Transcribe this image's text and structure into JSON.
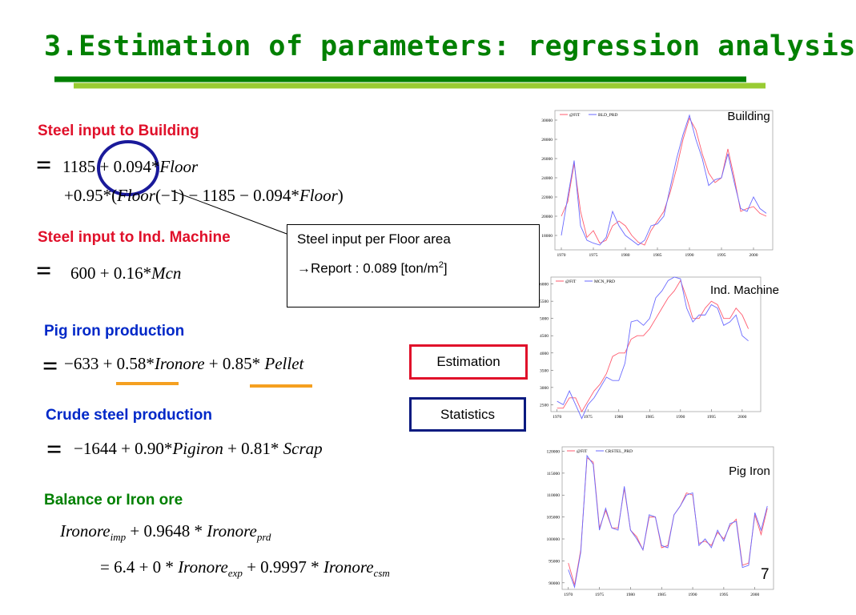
{
  "title": "3.Estimation of parameters: regression analysis",
  "sections": [
    {
      "label": "Steel input to Building",
      "color": "#e0102a",
      "equals": "=",
      "lines": [
        [
          "1185 + 0.094*",
          {
            "i": "Floor"
          }
        ],
        [
          "+0.95*(",
          {
            "i": "Floor"
          },
          "(−1) − 1185 − 0.094*",
          {
            "i": "Floor"
          },
          ")"
        ]
      ]
    },
    {
      "label": "Steel input to Ind. Machine",
      "color": "#e0102a",
      "equals": "=",
      "lines": [
        [
          "600 + 0.16*",
          {
            "i": "Mcn"
          }
        ]
      ]
    },
    {
      "label": "Pig iron production",
      "color": "#0028c8",
      "equals": "=",
      "lines": [
        [
          "−633 + 0.58*",
          {
            "i": "Ironore"
          },
          " + 0.85* ",
          {
            "i": "Pellet"
          }
        ]
      ]
    },
    {
      "label": "Crude steel production",
      "color": "#0028c8",
      "equals": "=",
      "lines": [
        [
          "−1644 + 0.90*",
          {
            "i": "Pigiron"
          },
          " + 0.81* ",
          {
            "i": "Scrap"
          }
        ]
      ]
    },
    {
      "label": "Balance or Iron ore",
      "color": "#008000",
      "lines": [
        [
          {
            "i": "Ironore"
          },
          {
            "sub": "imp"
          },
          " + 0.9648 * ",
          {
            "i": "Ironore"
          },
          {
            "sub": "prd"
          }
        ],
        [
          "= 6.4 + 0 * ",
          {
            "i": "Ironore"
          },
          {
            "sub": "exp"
          },
          " + 0.9997 * ",
          {
            "i": "Ironore"
          },
          {
            "sub": "csm"
          }
        ]
      ]
    }
  ],
  "callout": {
    "line1": "Steel input per Floor area",
    "line2": "→Report : 0.089 [ton/m",
    "sup": "2",
    "end": "]"
  },
  "buttons": [
    "Estimation",
    "Statistics"
  ],
  "page_number": "7",
  "chart_data": [
    {
      "type": "line",
      "label": "Building",
      "x": [
        1970,
        1971,
        1972,
        1973,
        1974,
        1975,
        1976,
        1977,
        1978,
        1979,
        1980,
        1981,
        1982,
        1983,
        1984,
        1985,
        1986,
        1987,
        1988,
        1989,
        1990,
        1991,
        1992,
        1993,
        1994,
        1995,
        1996,
        1997,
        1998,
        1999,
        2000,
        2001,
        2002
      ],
      "xlim": [
        1969,
        2003
      ],
      "xticks": [
        1970,
        1975,
        1980,
        1985,
        1990,
        1995,
        2000
      ],
      "ylim": [
        16500,
        31000
      ],
      "yticks": [
        18000,
        20000,
        22000,
        24000,
        26000,
        28000,
        30000
      ],
      "series": [
        {
          "name": "@FIT",
          "color": "#ff5a6e",
          "values": [
            20000,
            21500,
            25500,
            20500,
            17800,
            18500,
            17200,
            17500,
            19000,
            19500,
            19000,
            18000,
            17300,
            17000,
            18500,
            19500,
            20500,
            22500,
            25000,
            28000,
            30200,
            29000,
            26500,
            24500,
            23500,
            24000,
            27000,
            24000,
            20500,
            20800,
            21000,
            20300,
            20000
          ]
        },
        {
          "name": "BLD_PRD",
          "color": "#6a6aff",
          "values": [
            18000,
            22000,
            25800,
            19000,
            17500,
            17200,
            17000,
            17800,
            20500,
            19000,
            18000,
            17500,
            17000,
            17500,
            19000,
            19200,
            20000,
            23000,
            26000,
            28500,
            30500,
            28000,
            26000,
            23200,
            23800,
            24000,
            26500,
            23500,
            20800,
            20500,
            22000,
            20800,
            20300
          ]
        }
      ]
    },
    {
      "type": "line",
      "label": "Ind. Machine",
      "x": [
        1970,
        1971,
        1972,
        1973,
        1974,
        1975,
        1976,
        1977,
        1978,
        1979,
        1980,
        1981,
        1982,
        1983,
        1984,
        1985,
        1986,
        1987,
        1988,
        1989,
        1990,
        1991,
        1992,
        1993,
        1994,
        1995,
        1996,
        1997,
        1998,
        1999,
        2000,
        2001
      ],
      "xlim": [
        1969,
        2003
      ],
      "xticks": [
        1970,
        1975,
        1980,
        1985,
        1990,
        1995,
        2000
      ],
      "ylim": [
        2300,
        6200
      ],
      "yticks": [
        2500,
        3000,
        3500,
        4000,
        4500,
        5000,
        5500,
        6000
      ],
      "series": [
        {
          "name": "@FIT",
          "color": "#ff5a6e",
          "values": [
            2400,
            2400,
            2700,
            2700,
            2300,
            2600,
            2900,
            3100,
            3400,
            3900,
            4000,
            4000,
            4400,
            4500,
            4500,
            4700,
            5000,
            5300,
            5600,
            5800,
            6100,
            5600,
            5000,
            5000,
            5300,
            5500,
            5400,
            5000,
            5000,
            5300,
            5100,
            4700
          ]
        },
        {
          "name": "MCN_PRD",
          "color": "#6a6aff",
          "values": [
            2600,
            2500,
            2900,
            2500,
            2100,
            2500,
            2700,
            3000,
            3300,
            3200,
            3200,
            3700,
            4900,
            4950,
            4800,
            5000,
            5600,
            5800,
            6100,
            6200,
            6150,
            5300,
            4900,
            5100,
            5100,
            5400,
            5300,
            4800,
            4900,
            5100,
            4500,
            4350
          ]
        }
      ]
    },
    {
      "type": "line",
      "label": "Pig Iron",
      "x": [
        1970,
        1971,
        1972,
        1973,
        1974,
        1975,
        1976,
        1977,
        1978,
        1979,
        1980,
        1981,
        1982,
        1983,
        1984,
        1985,
        1986,
        1987,
        1988,
        1989,
        1990,
        1991,
        1992,
        1993,
        1994,
        1995,
        1996,
        1997,
        1998,
        1999,
        2000,
        2001,
        2002
      ],
      "xlim": [
        1969,
        2003
      ],
      "xticks": [
        1970,
        1975,
        1980,
        1985,
        1990,
        1995,
        2000
      ],
      "ylim": [
        88500,
        121000
      ],
      "yticks": [
        90000,
        95000,
        100000,
        105000,
        110000,
        115000,
        120000
      ],
      "series": [
        {
          "name": "@FIT",
          "color": "#ff5a6e",
          "values": [
            94500,
            89500,
            97500,
            118500,
            117500,
            102500,
            106500,
            102500,
            102500,
            111500,
            102000,
            100500,
            97500,
            105000,
            105000,
            98000,
            98500,
            105500,
            107500,
            110500,
            110000,
            99000,
            99500,
            98500,
            101500,
            100000,
            103000,
            104500,
            94000,
            94500,
            105500,
            101000,
            107000
          ]
        },
        {
          "name": "CRSTEL_PRD",
          "color": "#6a6aff",
          "values": [
            93000,
            89000,
            97000,
            119000,
            117000,
            102000,
            107000,
            102500,
            102000,
            112000,
            102000,
            100000,
            97500,
            105500,
            105000,
            98500,
            98000,
            105500,
            107500,
            110000,
            110500,
            98500,
            100000,
            98000,
            102000,
            99500,
            103500,
            104000,
            93500,
            94000,
            106000,
            102000,
            107500
          ]
        }
      ]
    }
  ]
}
